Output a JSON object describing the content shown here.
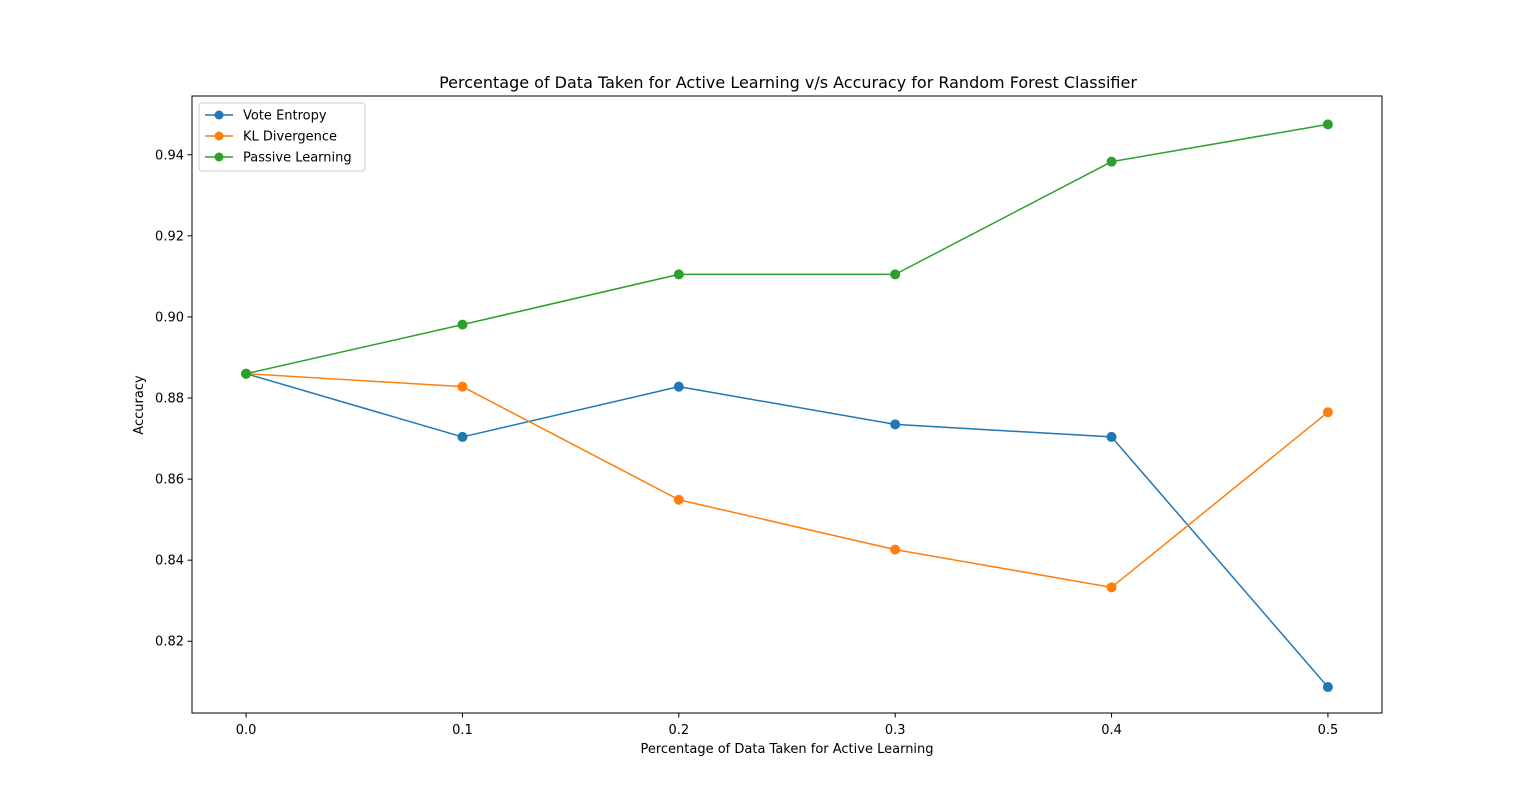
{
  "chart_data": {
    "type": "line",
    "title": "Percentage of Data Taken for Active Learning v/s Accuracy for Random Forest Classifier",
    "xlabel": "Percentage of Data Taken for Active Learning",
    "ylabel": "Accuracy",
    "x": [
      0.0,
      0.1,
      0.2,
      0.3,
      0.4,
      0.5
    ],
    "xticks": [
      "0.0",
      "0.1",
      "0.2",
      "0.3",
      "0.4",
      "0.5"
    ],
    "yticks": [
      "0.82",
      "0.84",
      "0.86",
      "0.88",
      "0.90",
      "0.92",
      "0.94"
    ],
    "ylim": [
      0.8023,
      0.9545
    ],
    "xlim": [
      -0.025,
      0.525
    ],
    "grid": false,
    "legend_position": "upper-left",
    "marker": "circle",
    "series": [
      {
        "name": "Vote Entropy",
        "color": "#1f77b4",
        "values": [
          0.886,
          0.8704,
          0.8828,
          0.8735,
          0.8704,
          0.8087
        ]
      },
      {
        "name": "KL Divergence",
        "color": "#ff7f0e",
        "values": [
          0.886,
          0.8828,
          0.8549,
          0.8426,
          0.8333,
          0.8765
        ]
      },
      {
        "name": "Passive Learning",
        "color": "#2ca02c",
        "values": [
          0.886,
          0.8981,
          0.9105,
          0.9105,
          0.9383,
          0.9475
        ]
      }
    ]
  }
}
